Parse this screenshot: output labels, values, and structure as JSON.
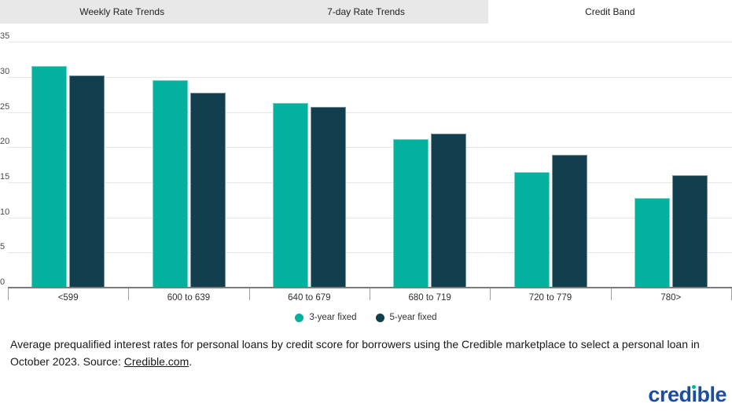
{
  "tabs": [
    {
      "label": "Weekly Rate Trends",
      "active": false
    },
    {
      "label": "7-day Rate Trends",
      "active": false
    },
    {
      "label": "Credit Band",
      "active": true
    }
  ],
  "chart_data": {
    "type": "bar",
    "title": "",
    "categories": [
      "<599",
      "600 to 639",
      "640 to 679",
      "680 to 719",
      "720 to 779",
      "780>"
    ],
    "series": [
      {
        "name": "3-year fixed",
        "color": "#04b19e",
        "values": [
          31.6,
          29.5,
          26.3,
          21.2,
          16.5,
          12.8
        ]
      },
      {
        "name": "5-year fixed",
        "color": "#123f4e",
        "values": [
          30.2,
          27.8,
          25.8,
          21.9,
          18.9,
          16.0
        ]
      }
    ],
    "ylabel": "",
    "xlabel": "",
    "ylim": [
      0,
      35
    ],
    "yticks": [
      0,
      5,
      10,
      15,
      20,
      25,
      30,
      35
    ],
    "grid": true,
    "legend_position": "bottom"
  },
  "caption": {
    "text": "Average prequalified interest rates for personal loans by credit score for borrowers using the Credible marketplace to select a personal loan in October 2023. Source: ",
    "link": "Credible.com",
    "suffix": "."
  },
  "logo": {
    "pre": "cred",
    "i": "ı",
    "post": "ble",
    "blue": "#1b4da1",
    "dot_color": "#04b19e"
  },
  "colors": {
    "accent_teal": "#04b19e",
    "accent_dark": "#123f4e",
    "tab_gray": "#e8e8e8",
    "gridline": "#e6e6e6"
  }
}
